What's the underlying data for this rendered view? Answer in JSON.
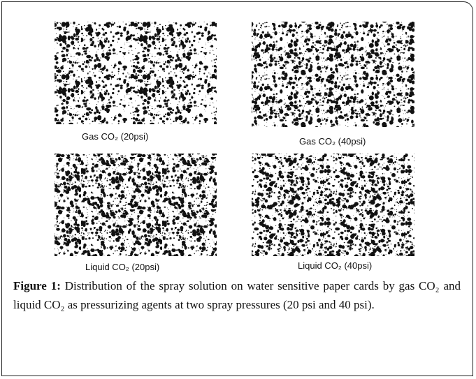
{
  "figure": {
    "panels": [
      {
        "label": "Gas CO₂ (20psi)"
      },
      {
        "label": "Gas CO₂ (40psi)"
      },
      {
        "label": "Liquid CO₂ (20psi)"
      },
      {
        "label": "Liquid CO₂ (40psi)"
      }
    ],
    "caption": {
      "label": "Figure 1:",
      "text": "Distribution of the spray solution on water sensitive paper cards by gas CO₂ and liquid CO₂ as pressurizing agents at two spray pressures (20 psi and 40 psi)."
    }
  }
}
